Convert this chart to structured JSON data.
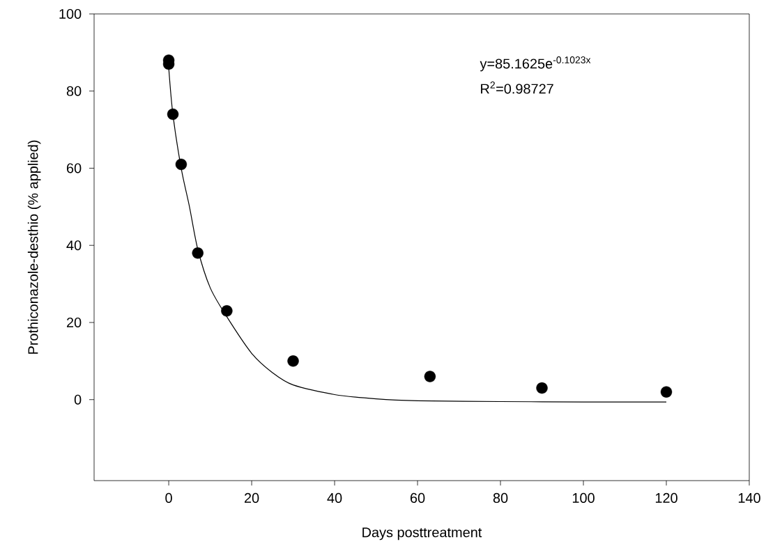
{
  "chart_data": {
    "type": "scatter",
    "xlabel": "Days posttreatment",
    "ylabel": "Prothiconazole-desthio (% applied)",
    "xlim": [
      -18,
      140
    ],
    "ylim": [
      -21,
      100
    ],
    "xticks": [
      0,
      20,
      40,
      60,
      80,
      100,
      120,
      140
    ],
    "yticks": [
      0,
      20,
      40,
      60,
      80,
      100
    ],
    "grid": false,
    "legend": false,
    "series": [
      {
        "marker": "circle",
        "color": "#000000",
        "x": [
          0,
          0,
          1,
          3,
          7,
          14,
          30,
          63,
          90,
          120
        ],
        "values": [
          88,
          87,
          74,
          61,
          38,
          23,
          10,
          6,
          3,
          2
        ]
      },
      {
        "type": "line",
        "marker": "none",
        "color": "#000000",
        "x": [
          0,
          1,
          3,
          5,
          7,
          10,
          14,
          20,
          25,
          30,
          40,
          50,
          60,
          80,
          100,
          120
        ],
        "values": [
          86,
          74,
          60,
          50,
          39,
          29,
          21.5,
          12,
          7,
          3.8,
          1.3,
          0.2,
          -0.3,
          -0.5,
          -0.6,
          -0.6
        ]
      }
    ],
    "annotations": [
      "y=85.1625e$^{-0.1023x}$",
      "R$^{2}$=0.98727"
    ]
  }
}
